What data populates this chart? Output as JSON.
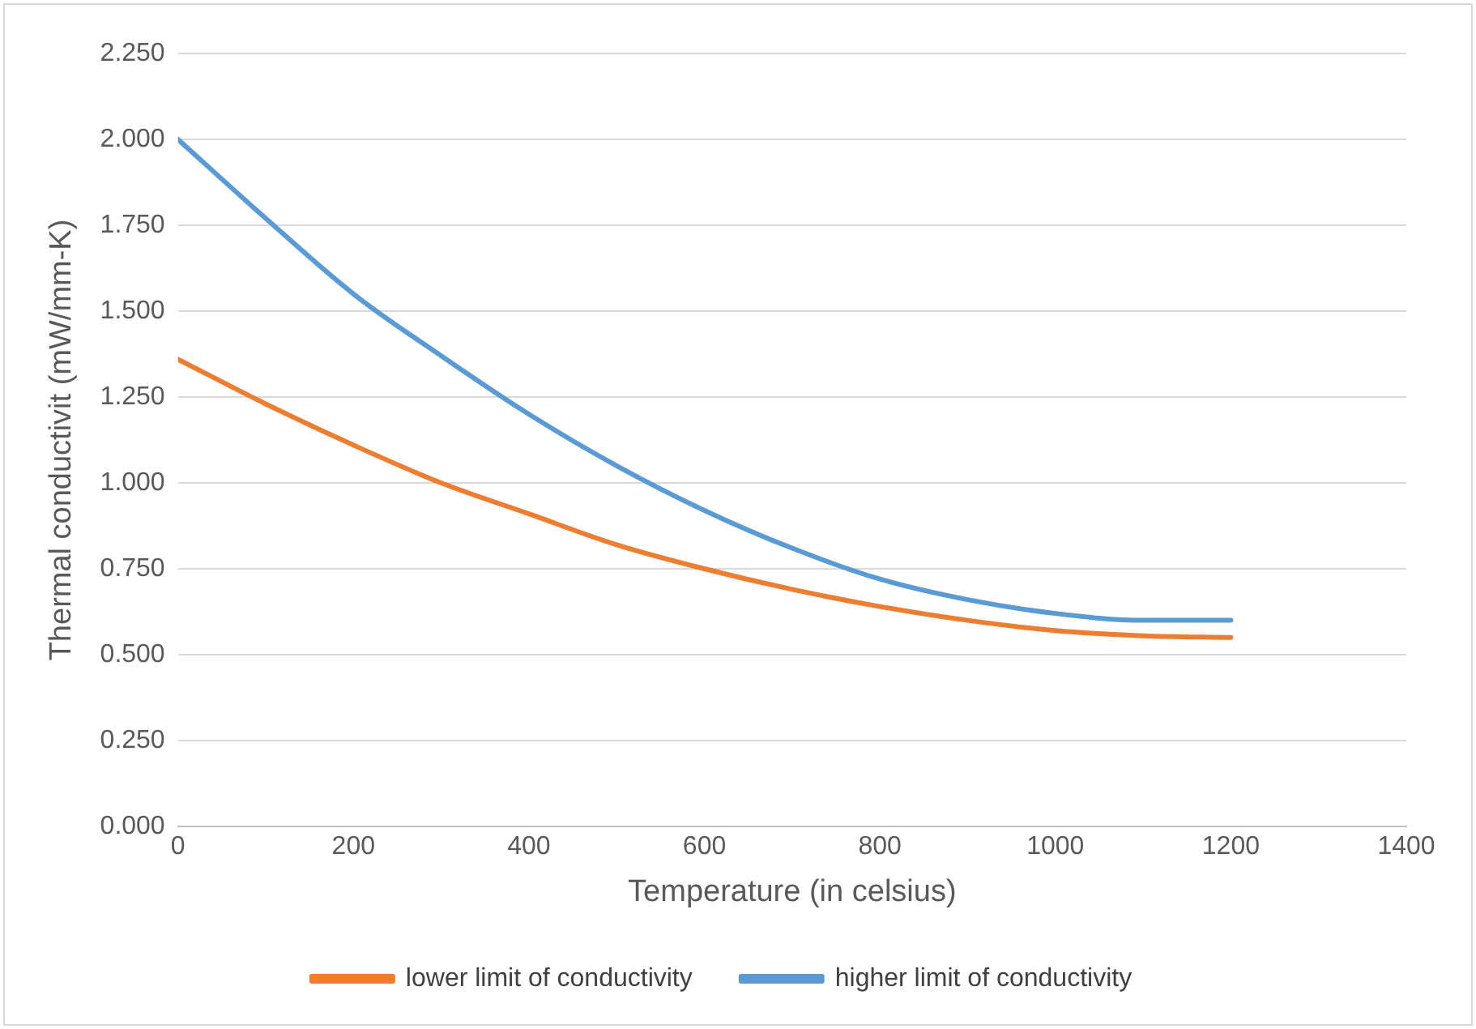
{
  "chart_data": {
    "type": "line",
    "xlabel": "Temperature (in celsius)",
    "ylabel": "Thermal conductivit (mW/mm-K)",
    "x": [
      0,
      100,
      200,
      300,
      400,
      500,
      600,
      700,
      800,
      900,
      1000,
      1100,
      1200
    ],
    "series": [
      {
        "name": "lower limit of conductivity",
        "color": "#ed7d31",
        "values": [
          1.36,
          1.23,
          1.11,
          1.0,
          0.91,
          0.82,
          0.75,
          0.69,
          0.64,
          0.6,
          0.57,
          0.555,
          0.55
        ]
      },
      {
        "name": "higher limit of conductivity",
        "color": "#5b9bd5",
        "values": [
          2.0,
          1.77,
          1.55,
          1.37,
          1.2,
          1.05,
          0.92,
          0.81,
          0.72,
          0.66,
          0.62,
          0.6,
          0.6
        ]
      }
    ],
    "xlim": [
      0,
      1400
    ],
    "xticks": [
      0,
      200,
      400,
      600,
      800,
      1000,
      1200,
      1400
    ],
    "ylim": [
      0,
      2.25
    ],
    "yticks": [
      {
        "value": 0,
        "label": "0.000"
      },
      {
        "value": 0.25,
        "label": "0.250"
      },
      {
        "value": 0.5,
        "label": "0.500"
      },
      {
        "value": 0.75,
        "label": "0.750"
      },
      {
        "value": 1,
        "label": "1.000"
      },
      {
        "value": 1.25,
        "label": "1.250"
      },
      {
        "value": 1.5,
        "label": "1.500"
      },
      {
        "value": 1.75,
        "label": "1.750"
      },
      {
        "value": 2,
        "label": "2.000"
      },
      {
        "value": 2.25,
        "label": "2.250"
      }
    ],
    "grid": "y",
    "legend": "bottom",
    "marker": "none",
    "line_style": "solid"
  }
}
